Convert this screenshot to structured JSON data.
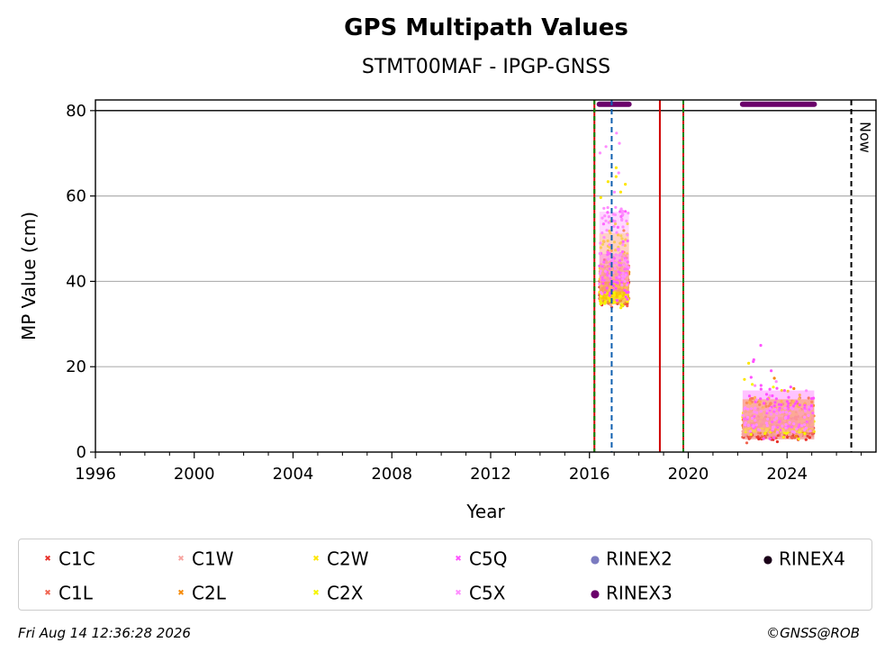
{
  "chart_data": {
    "type": "scatter",
    "title": "GPS Multipath Values",
    "subtitle": "STMT00MAF - IPGP-GNSS",
    "xlabel": "Year",
    "ylabel": "MP Value (cm)",
    "xlim": [
      1996,
      2027.6
    ],
    "ylim": [
      0,
      82.5
    ],
    "xticks": [
      1996,
      2000,
      2004,
      2008,
      2012,
      2016,
      2020,
      2024
    ],
    "yticks": [
      0,
      20,
      40,
      60,
      80
    ],
    "grid": "horizontal",
    "reference_line_y": 80,
    "vertical_lines": [
      {
        "x": 2016.2,
        "style": "red-green-dashed"
      },
      {
        "x": 2016.9,
        "style": "blue-dashed"
      },
      {
        "x": 2018.85,
        "style": "red-solid"
      },
      {
        "x": 2019.8,
        "style": "red-green-dashed"
      },
      {
        "x": 2026.6,
        "style": "black-dashed"
      }
    ],
    "now_label": "Now",
    "rinex_segments": [
      {
        "name": "RINEX3",
        "x_start": 2016.4,
        "x_end": 2017.6,
        "y": 81.5
      },
      {
        "name": "RINEX3",
        "x_start": 2022.2,
        "x_end": 2025.1,
        "y": 81.5
      }
    ],
    "series": [
      {
        "name": "C1C",
        "color": "#e8312a",
        "marker": "x",
        "clusters": [
          {
            "x_start": 2016.4,
            "x_end": 2017.6,
            "y_min": 33,
            "y_max": 50
          },
          {
            "x_start": 2022.2,
            "x_end": 2025.1,
            "y_min": 2,
            "y_max": 10
          }
        ]
      },
      {
        "name": "C1L",
        "color": "#f06450",
        "marker": "x",
        "clusters": [
          {
            "x_start": 2016.4,
            "x_end": 2017.6,
            "y_min": 33,
            "y_max": 46
          },
          {
            "x_start": 2022.2,
            "x_end": 2025.1,
            "y_min": 2,
            "y_max": 14
          }
        ]
      },
      {
        "name": "C1W",
        "color": "#f7a5a0",
        "marker": "x",
        "clusters": [
          {
            "x_start": 2016.4,
            "x_end": 2017.6,
            "y_min": 34,
            "y_max": 48
          },
          {
            "x_start": 2022.2,
            "x_end": 2025.1,
            "y_min": 3,
            "y_max": 12
          }
        ]
      },
      {
        "name": "C2L",
        "color": "#f58a0a",
        "marker": "x",
        "clusters": [
          {
            "x_start": 2016.4,
            "x_end": 2017.6,
            "y_min": 34,
            "y_max": 52
          },
          {
            "x_start": 2022.2,
            "x_end": 2025.1,
            "y_min": 3,
            "y_max": 21
          }
        ]
      },
      {
        "name": "C2W",
        "color": "#fde600",
        "marker": "x",
        "clusters": [
          {
            "x_start": 2016.4,
            "x_end": 2017.6,
            "y_min": 31,
            "y_max": 70
          },
          {
            "x_start": 2022.2,
            "x_end": 2025.1,
            "y_min": 3,
            "y_max": 21
          }
        ]
      },
      {
        "name": "C2X",
        "color": "#f5f500",
        "marker": "x",
        "clusters": [
          {
            "x_start": 2016.4,
            "x_end": 2017.6,
            "y_min": 32,
            "y_max": 55
          },
          {
            "x_start": 2022.2,
            "x_end": 2025.1,
            "y_min": 3,
            "y_max": 16
          }
        ]
      },
      {
        "name": "C5Q",
        "color": "#ff52ff",
        "marker": "x",
        "clusters": [
          {
            "x_start": 2016.4,
            "x_end": 2017.6,
            "y_min": 35,
            "y_max": 57
          },
          {
            "x_start": 2022.2,
            "x_end": 2025.1,
            "y_min": 3,
            "y_max": 25
          }
        ]
      },
      {
        "name": "C5X",
        "color": "#ff8cff",
        "marker": "x",
        "clusters": [
          {
            "x_start": 2016.4,
            "x_end": 2017.6,
            "y_min": 35,
            "y_max": 76
          },
          {
            "x_start": 2022.2,
            "x_end": 2025.1,
            "y_min": 3,
            "y_max": 17
          }
        ]
      }
    ],
    "legend": [
      {
        "name": "C1C",
        "color": "#e8312a",
        "marker": "x"
      },
      {
        "name": "C1L",
        "color": "#f06450",
        "marker": "x"
      },
      {
        "name": "C1W",
        "color": "#f7a5a0",
        "marker": "x"
      },
      {
        "name": "C2L",
        "color": "#f58a0a",
        "marker": "x"
      },
      {
        "name": "C2W",
        "color": "#fde600",
        "marker": "x"
      },
      {
        "name": "C2X",
        "color": "#f5f500",
        "marker": "x"
      },
      {
        "name": "C5Q",
        "color": "#ff52ff",
        "marker": "x"
      },
      {
        "name": "C5X",
        "color": "#ff8cff",
        "marker": "x"
      },
      {
        "name": "RINEX2",
        "color": "#7b7bc0",
        "marker": "dot"
      },
      {
        "name": "RINEX3",
        "color": "#6a006a",
        "marker": "dot"
      },
      {
        "name": "RINEX4",
        "color": "#1a0018",
        "marker": "dot"
      }
    ],
    "legend_placement": "bottom"
  },
  "footer": {
    "timestamp": "Fri Aug 14 12:36:28 2026",
    "credit": "©GNSS@ROB"
  }
}
